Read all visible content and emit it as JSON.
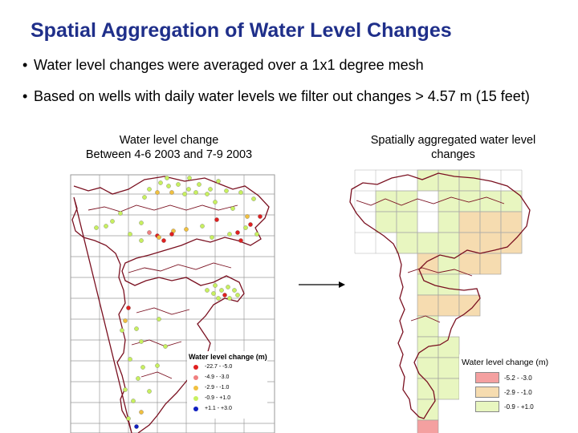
{
  "slide": {
    "title": "Spatial Aggregation of Water Level Changes",
    "bullets": [
      "Water level changes were averaged over a 1x1 degree mesh",
      "Based on wells with daily water levels we filter out changes > 4.57 m (15 feet)"
    ],
    "bullet_glyph": "•"
  },
  "left_map": {
    "caption_line1": "Water level change",
    "caption_line2": "Between 4-6 2003 and 7-9 2003",
    "legend": {
      "title": "Water level change (m)",
      "items": [
        {
          "label": "-22.7 - -5.0",
          "color": "#e02020"
        },
        {
          "label": "-4.9 - -3.0",
          "color": "#f08080"
        },
        {
          "label": "-2.9 - -1.0",
          "color": "#f0c040"
        },
        {
          "label": "-0.9 - +1.0",
          "color": "#c8f060"
        },
        {
          "label": "+1.1 - +3.0",
          "color": "#1020c0"
        }
      ]
    }
  },
  "right_map": {
    "caption_line1": "Spatially aggregated water level",
    "caption_line2": "changes",
    "legend": {
      "title": "Water level change (m)",
      "items": [
        {
          "label": "-5.2 - -3.0",
          "color": "#f4a0a0"
        },
        {
          "label": "-2.9 - -1.0",
          "color": "#f6dcb0"
        },
        {
          "label": "-0.9 - +1.0",
          "color": "#e8f6c0"
        }
      ]
    }
  },
  "colors": {
    "title": "#1f2f8a",
    "boundary": "#7a1020",
    "grid": "#9a9a9a"
  }
}
